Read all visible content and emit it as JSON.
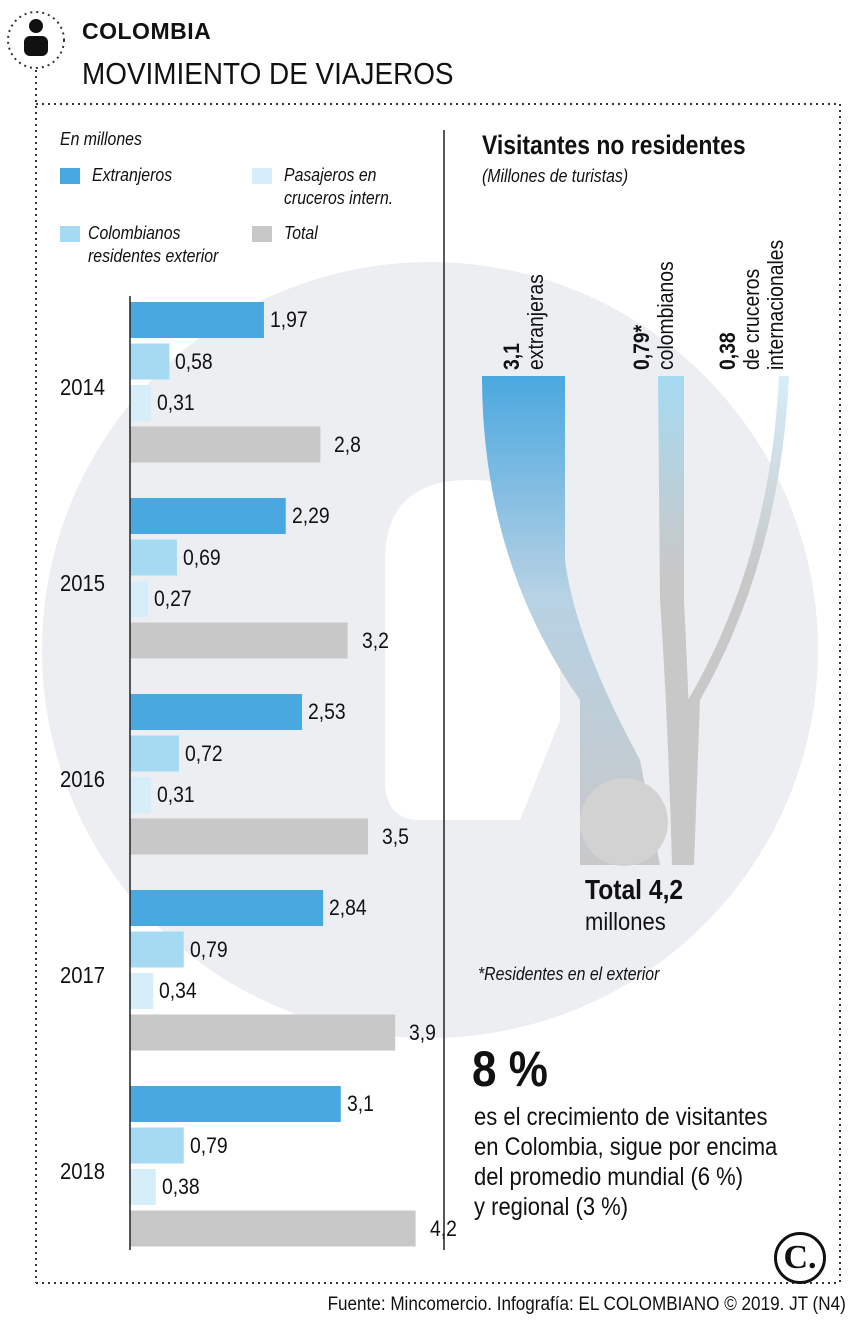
{
  "header": {
    "kicker": "COLOMBIA",
    "title": "MOVIMIENTO DE VIAJEROS",
    "icon": "person-icon"
  },
  "colors": {
    "extranjeros": "#4aa8e0",
    "colombianos": "#a6daf2",
    "cruceros": "#d5eefa",
    "total": "#c8c8c8",
    "watermark": "#eceef1"
  },
  "chart_data": [
    {
      "type": "bar",
      "orientation": "horizontal",
      "unit_label": "En millones",
      "categories": [
        "2014",
        "2015",
        "2016",
        "2017",
        "2018"
      ],
      "series": [
        {
          "name": "Extranjeros",
          "values": [
            1.97,
            2.29,
            2.53,
            2.84,
            3.1
          ],
          "labels": [
            "1,97",
            "2,29",
            "2,53",
            "2,84",
            "3,1"
          ]
        },
        {
          "name": "Colombianos residentes exterior",
          "values": [
            0.58,
            0.69,
            0.72,
            0.79,
            0.79
          ],
          "labels": [
            "0,58",
            "0,69",
            "0,72",
            "0,79",
            "0,79"
          ]
        },
        {
          "name": "Pasajeros en cruceros intern.",
          "values": [
            0.31,
            0.27,
            0.31,
            0.34,
            0.38
          ],
          "labels": [
            "0,31",
            "0,27",
            "0,31",
            "0,34",
            "0,38"
          ]
        },
        {
          "name": "Total",
          "values": [
            2.8,
            3.2,
            3.5,
            3.9,
            4.2
          ],
          "labels": [
            "2,8",
            "3,2",
            "3,5",
            "3,9",
            "4,2"
          ]
        }
      ],
      "legend": [
        {
          "label_lines": [
            "Extranjeros"
          ]
        },
        {
          "label_lines": [
            "Pasajeros en",
            "cruceros intern."
          ]
        },
        {
          "label_lines": [
            "Colombianos",
            "residentes exterior"
          ]
        },
        {
          "label_lines": [
            "Total"
          ]
        }
      ]
    },
    {
      "type": "sankey",
      "title": "Visitantes no residentes",
      "subtitle": "(Millones de turistas)",
      "flows": [
        {
          "value": 3.1,
          "value_label": "3,1",
          "label_lines": [
            "extranjeras"
          ]
        },
        {
          "value": 0.79,
          "value_label": "0,79*",
          "label_lines": [
            "colombianos"
          ]
        },
        {
          "value": 0.38,
          "value_label": "0,38",
          "label_lines": [
            "de cruceros",
            "internacionales"
          ]
        }
      ],
      "total": {
        "value": 4.2,
        "label": "Total 4,2",
        "unit": "millones"
      },
      "footnote": "*Residentes en el exterior"
    }
  ],
  "highlight": {
    "value": "8 %",
    "text_lines": [
      "es el crecimiento de visitantes",
      "en Colombia, sigue por encima",
      "del promedio mundial (6 %)",
      "y regional (3 %)"
    ]
  },
  "logo": {
    "letter": "C."
  },
  "footer": {
    "source": "Fuente: Mincomercio. Infografía: EL COLOMBIANO © 2019. JT (N4)"
  }
}
